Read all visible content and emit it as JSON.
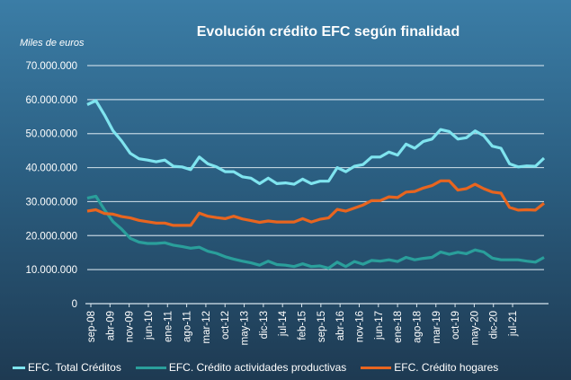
{
  "chart_data": {
    "type": "line",
    "title": "Evolución crédito EFC según finalidad",
    "ylabel": "Miles de euros",
    "xlabel": "",
    "ylim": [
      0,
      70000000
    ],
    "yticks": [
      "0",
      "10.000.000",
      "20.000.000",
      "30.000.000",
      "40.000.000",
      "50.000.000",
      "60.000.000",
      "70.000.000"
    ],
    "xtick_labels": [
      "sep-08",
      "abr-09",
      "nov-09",
      "jun-10",
      "ene-11",
      "ago-11",
      "mar-12",
      "oct-12",
      "may-13",
      "dic-13",
      "jul-14",
      "feb-15",
      "sep-15",
      "abr-16",
      "nov-16",
      "jun-17",
      "ene-18",
      "ago-18",
      "mar-19",
      "oct-19",
      "may-20",
      "dic-20",
      "jul-21"
    ],
    "grid": true,
    "legend_position": "bottom",
    "x": [
      "sep-08",
      "dic-08",
      "mar-09",
      "jun-09",
      "sep-09",
      "dic-09",
      "mar-10",
      "jun-10",
      "sep-10",
      "dic-10",
      "mar-11",
      "jun-11",
      "sep-11",
      "dic-11",
      "mar-12",
      "jun-12",
      "sep-12",
      "dic-12",
      "mar-13",
      "jun-13",
      "sep-13",
      "dic-13",
      "mar-14",
      "jun-14",
      "sep-14",
      "dic-14",
      "mar-15",
      "jun-15",
      "sep-15",
      "dic-15",
      "mar-16",
      "jun-16",
      "sep-16",
      "dic-16",
      "mar-17",
      "jun-17",
      "sep-17",
      "dic-17",
      "mar-18",
      "jun-18",
      "sep-18",
      "dic-18",
      "mar-19",
      "jun-19",
      "sep-19",
      "dic-19",
      "mar-20",
      "jun-20",
      "sep-20",
      "dic-20",
      "mar-21",
      "jun-21",
      "sep-21",
      "dic-21"
    ],
    "series": [
      {
        "name": "EFC. Total Créditos",
        "color": "#7fe4ef",
        "values": [
          58500000,
          59700000,
          55500000,
          50800000,
          47800000,
          44200000,
          42600000,
          42200000,
          41700000,
          42200000,
          40400000,
          40200000,
          39400000,
          43100000,
          41100000,
          40200000,
          38800000,
          38800000,
          37300000,
          36900000,
          35300000,
          36900000,
          35300000,
          35500000,
          35100000,
          36600000,
          35300000,
          36000000,
          36000000,
          40000000,
          38800000,
          40400000,
          40900000,
          43100000,
          43100000,
          44600000,
          43700000,
          46900000,
          45700000,
          47700000,
          48400000,
          51200000,
          50600000,
          48400000,
          48800000,
          50800000,
          49400000,
          46300000,
          45700000,
          41100000,
          40200000,
          40500000,
          40400000,
          42800000
        ]
      },
      {
        "name": "EFC. Crédito actividades productivas",
        "color": "#2a9f9b",
        "values": [
          31000000,
          31600000,
          27600000,
          24100000,
          21900000,
          19200000,
          18100000,
          17700000,
          17700000,
          17900000,
          17200000,
          16800000,
          16300000,
          16600000,
          15400000,
          14800000,
          13800000,
          13100000,
          12500000,
          12000000,
          11300000,
          12500000,
          11500000,
          11300000,
          10900000,
          11700000,
          10900000,
          11100000,
          10400000,
          12200000,
          10900000,
          12400000,
          11600000,
          12700000,
          12500000,
          12900000,
          12400000,
          13600000,
          12900000,
          13300000,
          13600000,
          15200000,
          14500000,
          15100000,
          14700000,
          15800000,
          15200000,
          13400000,
          12900000,
          12900000,
          12900000,
          12500000,
          12200000,
          13600000
        ]
      },
      {
        "name": "EFC. Crédito hogares",
        "color": "#e8651f",
        "values": [
          27200000,
          27600000,
          26500000,
          26300000,
          25600000,
          25200000,
          24500000,
          24100000,
          23700000,
          23700000,
          23000000,
          23000000,
          23000000,
          26600000,
          25700000,
          25300000,
          25000000,
          25700000,
          24900000,
          24400000,
          23900000,
          24300000,
          24000000,
          24000000,
          24000000,
          25000000,
          24000000,
          24800000,
          25200000,
          27700000,
          27200000,
          28100000,
          29000000,
          30300000,
          30300000,
          31400000,
          31200000,
          32800000,
          33000000,
          34000000,
          34700000,
          36100000,
          36100000,
          33400000,
          33800000,
          35100000,
          33800000,
          32800000,
          32500000,
          28300000,
          27500000,
          27600000,
          27500000,
          29500000
        ]
      }
    ]
  }
}
